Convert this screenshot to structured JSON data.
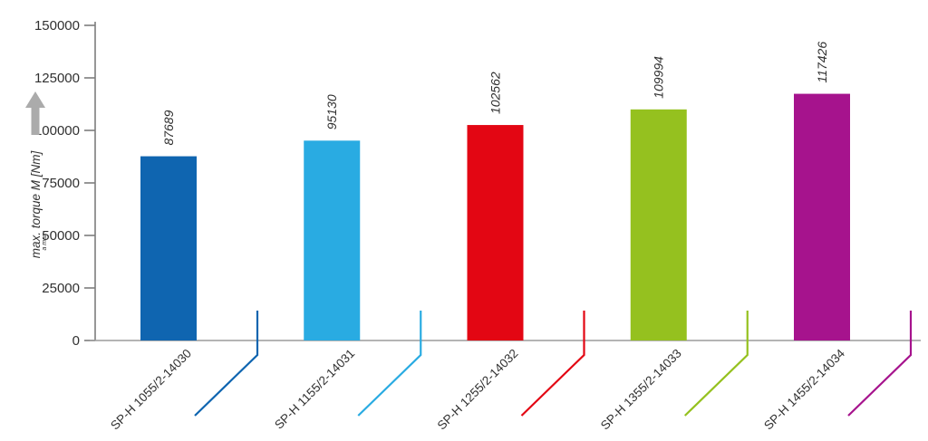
{
  "chart_data": {
    "type": "bar",
    "title": "",
    "xlabel": "",
    "ylabel": "max. torque M [Nm]",
    "ylabel_main": "max. torque M [Nm]",
    "ylabel_subscript": "a max",
    "ylim": [
      0,
      150000
    ],
    "yticks": [
      0,
      25000,
      50000,
      75000,
      100000,
      125000,
      150000
    ],
    "ytick_labels": [
      "0",
      "25000",
      "50000",
      "75000",
      "100000",
      "125000",
      "150000"
    ],
    "categories": [
      "SP-H 1055/2-14030",
      "SP-H 1155/2-14031",
      "SP-H 1255/2-14032",
      "SP-H 1355/2-14033",
      "SP-H 1455/2-14034"
    ],
    "values": [
      87689,
      95130,
      102562,
      109994,
      117426
    ],
    "value_labels": [
      "87689",
      "95130",
      "102562",
      "109994",
      "117426"
    ],
    "bar_colors": [
      "#0F65B0",
      "#29ABE2",
      "#E30613",
      "#95C11F",
      "#A6138D"
    ],
    "grid": false,
    "legend": false,
    "axis_color": "#7D7D7D",
    "baseline_color": "#9C9C9C",
    "text_color": "#303030",
    "value_text_color": "#303030",
    "arrow_color": "#ABABAB"
  }
}
